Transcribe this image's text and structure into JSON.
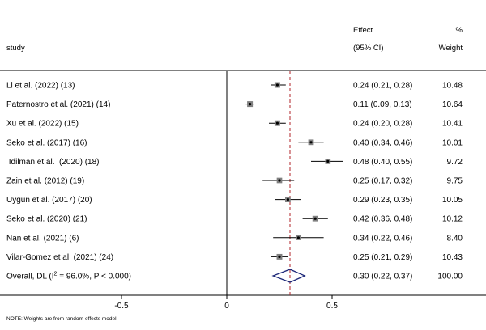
{
  "headers": {
    "study": "study",
    "effect_line1": "Effect",
    "effect_line2": "(95% CI)",
    "weight_line1": "%",
    "weight_line2": "Weight"
  },
  "note": "NOTE: Weights are from random-effects model",
  "colors": {
    "box": "#808080",
    "line": "#000000",
    "pooled_line": "#b0232a",
    "diamond": "#1f2a7a",
    "background": "#eaf2f5"
  },
  "chart_data": {
    "type": "forest",
    "x_ticks": [
      {
        "value": -0.5,
        "label": "-0.5"
      },
      {
        "value": 0,
        "label": "0"
      },
      {
        "value": 0.5,
        "label": "0.5"
      }
    ],
    "xlim": [
      -1.0,
      0.74
    ],
    "null_line": 0,
    "pooled_line": 0.3,
    "studies": [
      {
        "label": "Li et al. (2022) (13)",
        "effect": 0.24,
        "lo": 0.21,
        "hi": 0.28,
        "ci_text": "0.24 (0.21, 0.28)",
        "weight": 10.48,
        "weight_text": "10.48"
      },
      {
        "label": "Paternostro et al. (2021) (14)",
        "effect": 0.11,
        "lo": 0.09,
        "hi": 0.13,
        "ci_text": "0.11 (0.09, 0.13)",
        "weight": 10.64,
        "weight_text": "10.64"
      },
      {
        "label": "Xu et al. (2022) (15)",
        "effect": 0.24,
        "lo": 0.2,
        "hi": 0.28,
        "ci_text": "0.24 (0.20, 0.28)",
        "weight": 10.41,
        "weight_text": "10.41"
      },
      {
        "label": "Seko et al. (2017) (16)",
        "effect": 0.4,
        "lo": 0.34,
        "hi": 0.46,
        "ci_text": "0.40 (0.34, 0.46)",
        "weight": 10.01,
        "weight_text": "10.01"
      },
      {
        "label": " Idilman et al.  (2020) (18)",
        "effect": 0.48,
        "lo": 0.4,
        "hi": 0.55,
        "ci_text": "0.48 (0.40, 0.55)",
        "weight": 9.72,
        "weight_text": "9.72"
      },
      {
        "label": "Zain et al. (2012) (19)",
        "effect": 0.25,
        "lo": 0.17,
        "hi": 0.32,
        "ci_text": "0.25 (0.17, 0.32)",
        "weight": 9.75,
        "weight_text": "9.75"
      },
      {
        "label": "Uygun et al. (2017) (20)",
        "effect": 0.29,
        "lo": 0.23,
        "hi": 0.35,
        "ci_text": "0.29 (0.23, 0.35)",
        "weight": 10.05,
        "weight_text": "10.05"
      },
      {
        "label": "Seko et al. (2020) (21)",
        "effect": 0.42,
        "lo": 0.36,
        "hi": 0.48,
        "ci_text": "0.42 (0.36, 0.48)",
        "weight": 10.12,
        "weight_text": "10.12"
      },
      {
        "label": "Nan et al. (2021) (6)",
        "effect": 0.34,
        "lo": 0.22,
        "hi": 0.46,
        "ci_text": "0.34 (0.22, 0.46)",
        "weight": 8.4,
        "weight_text": "8.40"
      },
      {
        "label": "Vilar-Gomez et al. (2021) (24)",
        "effect": 0.25,
        "lo": 0.21,
        "hi": 0.29,
        "ci_text": "0.25 (0.21, 0.29)",
        "weight": 10.43,
        "weight_text": "10.43"
      }
    ],
    "overall": {
      "label_prefix": "Overall, DL (I",
      "label_sup": "2",
      "label_suffix": " = 96.0%, P < 0.000)",
      "effect": 0.3,
      "lo": 0.22,
      "hi": 0.37,
      "ci_text": "0.30 (0.22, 0.37)",
      "weight_text": "100.00"
    }
  }
}
